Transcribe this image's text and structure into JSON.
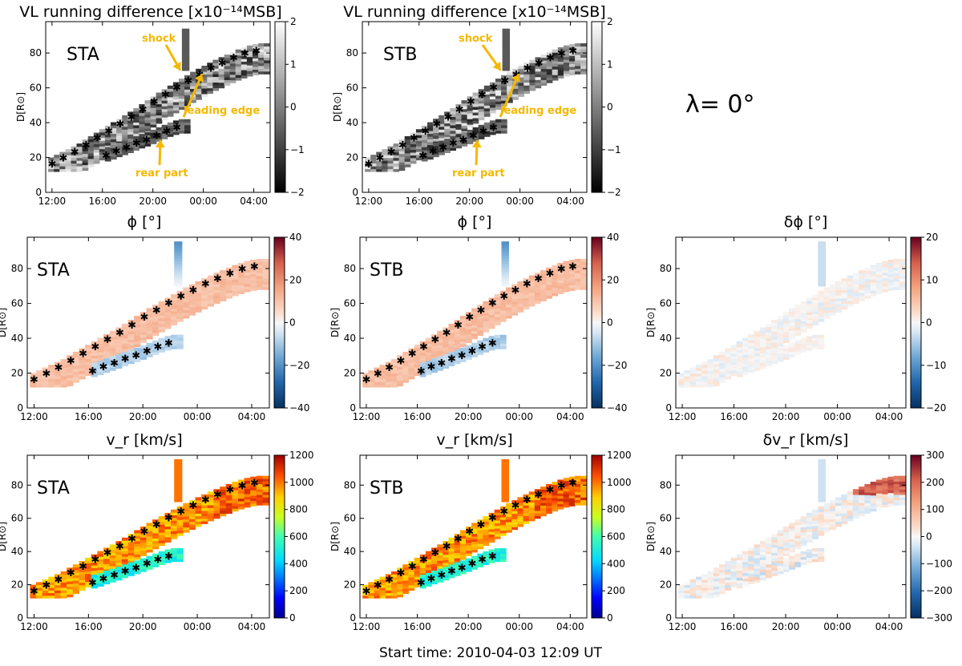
{
  "chart_data": {
    "type": "heatmap",
    "footer": "Start time: 2010-04-03 12:09 UT",
    "lambda_label": "λ=   0°",
    "x_tick_labels": [
      "12:00",
      "16:00",
      "20:00",
      "00:00",
      "04:00"
    ],
    "x_ticks_hours": [
      0,
      4,
      8,
      12,
      16
    ],
    "xlim_hours": [
      -0.5,
      17.3
    ],
    "ylim": [
      0,
      98
    ],
    "y_ticks": [
      0,
      20,
      40,
      60,
      80
    ],
    "ylabel": "D[R⊙]",
    "front_track_hours": [
      0.0,
      0.9,
      1.8,
      2.7,
      3.6,
      4.5,
      5.4,
      6.3,
      7.2,
      8.1,
      9.0,
      9.9,
      10.8,
      11.7,
      12.6,
      13.5,
      14.4,
      15.3,
      16.2
    ],
    "front_track_D": [
      16.0,
      19.5,
      23.0,
      27.0,
      31.0,
      35.0,
      39.0,
      43.0,
      47.5,
      52.0,
      56.0,
      60.0,
      64.0,
      67.5,
      71.0,
      74.0,
      77.0,
      79.5,
      81.0
    ],
    "rear_track_hours": [
      4.3,
      5.1,
      5.9,
      6.7,
      7.5,
      8.3,
      9.1,
      9.9
    ],
    "rear_track_D": [
      21.0,
      23.5,
      25.5,
      28.0,
      30.0,
      32.5,
      35.0,
      37.0
    ],
    "panels": [
      {
        "id": "vl-sta",
        "title": "VL running difference [x10⁻¹⁴MSB]",
        "tag": "STA",
        "cmap": "gray",
        "clim": [
          -2,
          2
        ],
        "cbar_ticks": [
          -2,
          -1,
          0,
          1,
          2
        ],
        "cbar_labels": [
          "−2",
          "−1",
          "0",
          "1",
          "2"
        ],
        "shock_hour": 10.3,
        "shock_top": 93,
        "annotations": [
          "shock",
          "leading edge",
          "rear part"
        ]
      },
      {
        "id": "vl-stb",
        "title": "VL running difference [x10⁻¹⁴MSB]",
        "tag": "STB",
        "cmap": "gray",
        "clim": [
          -2,
          2
        ],
        "cbar_ticks": [
          -2,
          -1,
          0,
          1,
          2
        ],
        "cbar_labels": [
          "−2",
          "−1",
          "0",
          "1",
          "2"
        ],
        "shock_hour": 10.6,
        "shock_top": 93,
        "annotations": [
          "shock",
          "leading edge",
          "rear part"
        ]
      },
      {
        "id": "phi-sta",
        "title": "ϕ [°]",
        "tag": "STA",
        "cmap": "rdbu",
        "clim": [
          -40,
          40
        ],
        "cbar_ticks": [
          -40,
          -20,
          0,
          20,
          40
        ],
        "cbar_labels": [
          "−40",
          "−20",
          "0",
          "20",
          "40"
        ],
        "shock_hour": 10.3,
        "shock_top": 94
      },
      {
        "id": "phi-stb",
        "title": "ϕ [°]",
        "tag": "STB",
        "cmap": "rdbu",
        "clim": [
          -40,
          40
        ],
        "cbar_ticks": [
          -40,
          -20,
          0,
          20,
          40
        ],
        "cbar_labels": [
          "−40",
          "−20",
          "0",
          "20",
          "40"
        ],
        "shock_hour": 10.6,
        "shock_top": 94
      },
      {
        "id": "dphi",
        "title": "δϕ [°]",
        "tag": "",
        "cmap": "rdbu",
        "clim": [
          -20,
          20
        ],
        "cbar_ticks": [
          -20,
          -10,
          0,
          10,
          20
        ],
        "cbar_labels": [
          "−20",
          "−10",
          "0",
          "10",
          "20"
        ],
        "shock_hour": 10.5,
        "shock_top": 94
      },
      {
        "id": "vr-sta",
        "title": "v_r [km/s]",
        "tag": "STA",
        "cmap": "jet",
        "clim": [
          0,
          1200
        ],
        "cbar_ticks": [
          0,
          200,
          400,
          600,
          800,
          1000,
          1200
        ],
        "cbar_labels": [
          "0",
          "200",
          "400",
          "600",
          "800",
          "1000",
          "1200"
        ],
        "shock_hour": 10.3,
        "shock_top": 94
      },
      {
        "id": "vr-stb",
        "title": "v_r [km/s]",
        "tag": "STB",
        "cmap": "jet",
        "clim": [
          0,
          1200
        ],
        "cbar_ticks": [
          0,
          200,
          400,
          600,
          800,
          1000,
          1200
        ],
        "cbar_labels": [
          "0",
          "200",
          "400",
          "600",
          "800",
          "1000",
          "1200"
        ],
        "shock_hour": 10.6,
        "shock_top": 94
      },
      {
        "id": "dvr",
        "title": "δv_r [km/s]",
        "tag": "",
        "cmap": "rdbu",
        "clim": [
          -300,
          300
        ],
        "cbar_ticks": [
          -300,
          -200,
          -100,
          0,
          100,
          200,
          300
        ],
        "cbar_labels": [
          "−300",
          "−200",
          "−100",
          "0",
          "100",
          "200",
          "300"
        ],
        "shock_hour": 10.5,
        "shock_top": 94
      }
    ]
  }
}
